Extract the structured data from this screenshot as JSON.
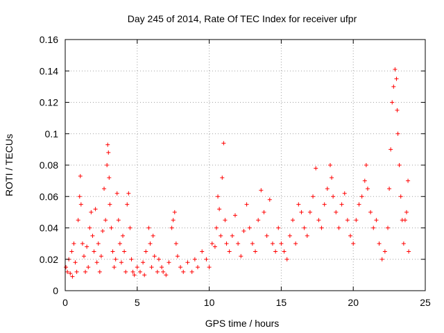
{
  "chart_data": {
    "type": "scatter",
    "title": "Day 245 of 2014, Rate Of TEC Index for receiver ufpr",
    "xlabel": "GPS time / hours",
    "ylabel": "ROTI / TECUs",
    "xlim": [
      0,
      25
    ],
    "ylim": [
      0,
      0.16
    ],
    "x_ticks": [
      0,
      5,
      10,
      15,
      20,
      25
    ],
    "x_tick_labels": [
      "0",
      "5",
      "10",
      "15",
      "20",
      "25"
    ],
    "y_ticks": [
      0,
      0.02,
      0.04,
      0.06,
      0.08,
      0.1,
      0.12,
      0.14,
      0.16
    ],
    "y_tick_labels": [
      "0",
      "0.02",
      "0.04",
      "0.06",
      "0.08",
      "0.1",
      "0.12",
      "0.14",
      "0.16"
    ],
    "grid": true,
    "marker": "+",
    "color": "#ff0000",
    "series": [
      {
        "name": "ROTI",
        "points": [
          [
            0.05,
            0.015
          ],
          [
            0.15,
            0.012
          ],
          [
            0.25,
            0.02
          ],
          [
            0.35,
            0.011
          ],
          [
            0.45,
            0.025
          ],
          [
            0.5,
            0.009
          ],
          [
            0.6,
            0.03
          ],
          [
            0.7,
            0.018
          ],
          [
            0.8,
            0.012
          ],
          [
            0.9,
            0.045
          ],
          [
            1.0,
            0.06
          ],
          [
            1.05,
            0.073
          ],
          [
            1.1,
            0.055
          ],
          [
            1.2,
            0.03
          ],
          [
            1.3,
            0.022
          ],
          [
            1.4,
            0.012
          ],
          [
            1.5,
            0.028
          ],
          [
            1.6,
            0.015
          ],
          [
            1.7,
            0.04
          ],
          [
            1.8,
            0.05
          ],
          [
            1.9,
            0.035
          ],
          [
            2.0,
            0.025
          ],
          [
            2.1,
            0.052
          ],
          [
            2.2,
            0.018
          ],
          [
            2.3,
            0.03
          ],
          [
            2.4,
            0.012
          ],
          [
            2.5,
            0.022
          ],
          [
            2.6,
            0.038
          ],
          [
            2.7,
            0.065
          ],
          [
            2.8,
            0.045
          ],
          [
            2.9,
            0.08
          ],
          [
            2.95,
            0.093
          ],
          [
            3.0,
            0.088
          ],
          [
            3.05,
            0.072
          ],
          [
            3.1,
            0.055
          ],
          [
            3.2,
            0.04
          ],
          [
            3.3,
            0.025
          ],
          [
            3.4,
            0.015
          ],
          [
            3.5,
            0.02
          ],
          [
            3.6,
            0.062
          ],
          [
            3.7,
            0.045
          ],
          [
            3.8,
            0.03
          ],
          [
            3.9,
            0.018
          ],
          [
            4.0,
            0.035
          ],
          [
            4.1,
            0.025
          ],
          [
            4.2,
            0.012
          ],
          [
            4.3,
            0.055
          ],
          [
            4.4,
            0.062
          ],
          [
            4.5,
            0.04
          ],
          [
            4.6,
            0.02
          ],
          [
            4.7,
            0.012
          ],
          [
            4.8,
            0.01
          ],
          [
            5.0,
            0.015
          ],
          [
            5.2,
            0.012
          ],
          [
            5.4,
            0.018
          ],
          [
            5.5,
            0.01
          ],
          [
            5.6,
            0.025
          ],
          [
            5.8,
            0.04
          ],
          [
            5.9,
            0.03
          ],
          [
            6.0,
            0.015
          ],
          [
            6.1,
            0.035
          ],
          [
            6.2,
            0.022
          ],
          [
            6.4,
            0.012
          ],
          [
            6.5,
            0.02
          ],
          [
            6.7,
            0.015
          ],
          [
            6.8,
            0.012
          ],
          [
            7.0,
            0.01
          ],
          [
            7.2,
            0.018
          ],
          [
            7.4,
            0.04
          ],
          [
            7.5,
            0.045
          ],
          [
            7.6,
            0.05
          ],
          [
            7.7,
            0.03
          ],
          [
            7.8,
            0.022
          ],
          [
            8.0,
            0.015
          ],
          [
            8.2,
            0.012
          ],
          [
            8.5,
            0.018
          ],
          [
            8.8,
            0.012
          ],
          [
            9.0,
            0.02
          ],
          [
            9.2,
            0.015
          ],
          [
            9.5,
            0.025
          ],
          [
            9.8,
            0.02
          ],
          [
            10.0,
            0.015
          ],
          [
            10.2,
            0.03
          ],
          [
            10.4,
            0.028
          ],
          [
            10.5,
            0.04
          ],
          [
            10.6,
            0.06
          ],
          [
            10.7,
            0.052
          ],
          [
            10.8,
            0.035
          ],
          [
            10.9,
            0.072
          ],
          [
            11.0,
            0.094
          ],
          [
            11.1,
            0.045
          ],
          [
            11.2,
            0.03
          ],
          [
            11.4,
            0.025
          ],
          [
            11.6,
            0.035
          ],
          [
            11.8,
            0.048
          ],
          [
            12.0,
            0.03
          ],
          [
            12.2,
            0.022
          ],
          [
            12.4,
            0.038
          ],
          [
            12.6,
            0.055
          ],
          [
            12.8,
            0.04
          ],
          [
            13.0,
            0.03
          ],
          [
            13.2,
            0.025
          ],
          [
            13.4,
            0.045
          ],
          [
            13.6,
            0.064
          ],
          [
            13.8,
            0.05
          ],
          [
            14.0,
            0.035
          ],
          [
            14.2,
            0.058
          ],
          [
            14.4,
            0.03
          ],
          [
            14.6,
            0.025
          ],
          [
            14.8,
            0.04
          ],
          [
            15.0,
            0.03
          ],
          [
            15.2,
            0.025
          ],
          [
            15.4,
            0.02
          ],
          [
            15.6,
            0.035
          ],
          [
            15.8,
            0.045
          ],
          [
            16.0,
            0.03
          ],
          [
            16.2,
            0.055
          ],
          [
            16.4,
            0.05
          ],
          [
            16.6,
            0.04
          ],
          [
            16.8,
            0.035
          ],
          [
            17.0,
            0.05
          ],
          [
            17.2,
            0.06
          ],
          [
            17.4,
            0.078
          ],
          [
            17.6,
            0.045
          ],
          [
            17.8,
            0.04
          ],
          [
            18.0,
            0.055
          ],
          [
            18.2,
            0.065
          ],
          [
            18.4,
            0.08
          ],
          [
            18.5,
            0.072
          ],
          [
            18.6,
            0.06
          ],
          [
            18.8,
            0.05
          ],
          [
            19.0,
            0.04
          ],
          [
            19.2,
            0.055
          ],
          [
            19.4,
            0.062
          ],
          [
            19.6,
            0.045
          ],
          [
            19.8,
            0.035
          ],
          [
            20.0,
            0.03
          ],
          [
            20.2,
            0.045
          ],
          [
            20.4,
            0.055
          ],
          [
            20.6,
            0.06
          ],
          [
            20.8,
            0.07
          ],
          [
            20.9,
            0.08
          ],
          [
            21.0,
            0.065
          ],
          [
            21.2,
            0.05
          ],
          [
            21.4,
            0.04
          ],
          [
            21.6,
            0.045
          ],
          [
            21.8,
            0.03
          ],
          [
            22.0,
            0.02
          ],
          [
            22.2,
            0.025
          ],
          [
            22.4,
            0.04
          ],
          [
            22.5,
            0.065
          ],
          [
            22.6,
            0.09
          ],
          [
            22.7,
            0.12
          ],
          [
            22.8,
            0.13
          ],
          [
            22.9,
            0.141
          ],
          [
            23.0,
            0.135
          ],
          [
            23.05,
            0.115
          ],
          [
            23.1,
            0.1
          ],
          [
            23.2,
            0.08
          ],
          [
            23.3,
            0.06
          ],
          [
            23.4,
            0.045
          ],
          [
            23.5,
            0.03
          ],
          [
            23.6,
            0.045
          ],
          [
            23.7,
            0.05
          ],
          [
            23.8,
            0.07
          ],
          [
            23.85,
            0.025
          ]
        ]
      }
    ]
  }
}
